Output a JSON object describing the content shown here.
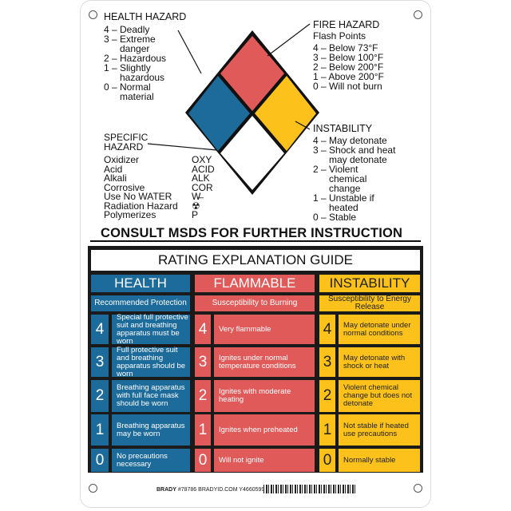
{
  "colors": {
    "health": "#1d6b9a",
    "flammable": "#e05a5a",
    "instability": "#fcc21b",
    "special": "#ffffff"
  },
  "health_hazard": {
    "title": "HEALTH HAZARD",
    "items": [
      "4 – Deadly",
      "3 – Extreme\n      danger",
      "2 – Hazardous",
      "1 – Slightly\n      hazardous",
      "0 – Normal\n      material"
    ]
  },
  "fire_hazard": {
    "title": "FIRE HAZARD",
    "subtitle": "Flash Points",
    "items": [
      "4 – Below 73°F",
      "3 – Below 100°F",
      "2 – Below 200°F",
      "1 – Above 200°F",
      "0 – Will not burn"
    ]
  },
  "instability": {
    "title": "INSTABILITY",
    "items": [
      "4 – May detonate",
      "3 – Shock and heat\n      may detonate",
      "2 – Violent\n      chemical\n      change",
      "1 – Unstable if\n      heated",
      "0 – Stable"
    ]
  },
  "specific_hazard": {
    "title": "SPECIFIC\nHAZARD",
    "items": [
      {
        "name": "Oxidizer",
        "code": "OXY"
      },
      {
        "name": "Acid",
        "code": "ACID"
      },
      {
        "name": "Alkali",
        "code": "ALK"
      },
      {
        "name": "Corrosive",
        "code": "COR"
      },
      {
        "name": "Use No WATER",
        "code": "W̶"
      },
      {
        "name": "Radiation Hazard",
        "code": "☢"
      },
      {
        "name": "Polymerizes",
        "code": "P"
      }
    ]
  },
  "consult": "CONSULT MSDS FOR FURTHER INSTRUCTION",
  "guide": {
    "title": "RATING EXPLANATION GUIDE",
    "columns": [
      {
        "header": "HEALTH",
        "sub": "Recommended Protection",
        "rows": [
          {
            "n": "4",
            "t": "Special full protective suit and breathing apparatus must be worn"
          },
          {
            "n": "3",
            "t": "Full protective suit and breathing apparatus should be worn"
          },
          {
            "n": "2",
            "t": "Breathing apparatus with full face mask should be worn"
          },
          {
            "n": "1",
            "t": "Breathing apparatus may be worn"
          },
          {
            "n": "0",
            "t": "No precautions necessary"
          }
        ]
      },
      {
        "header": "FLAMMABLE",
        "sub": "Susceptibility to Burning",
        "rows": [
          {
            "n": "4",
            "t": "Very flammable"
          },
          {
            "n": "3",
            "t": "Ignites under normal temperature conditions"
          },
          {
            "n": "2",
            "t": "Ignites with moderate heating"
          },
          {
            "n": "1",
            "t": "Ignites when preheated"
          },
          {
            "n": "0",
            "t": "Will not ignite"
          }
        ]
      },
      {
        "header": "INSTABILITY",
        "sub": "Susceptibility to Energy Release",
        "rows": [
          {
            "n": "4",
            "t": "May detonate under normal conditions"
          },
          {
            "n": "3",
            "t": "May detonate with shock or heat"
          },
          {
            "n": "2",
            "t": "Violent chemical change but does not detonate"
          },
          {
            "n": "1",
            "t": "Not stable if heated use precautions"
          },
          {
            "n": "0",
            "t": "Normally stable"
          }
        ]
      }
    ]
  },
  "footer": {
    "brand": "BRADY",
    "text": "#78786  BRADYID.COM  Y4660599"
  }
}
